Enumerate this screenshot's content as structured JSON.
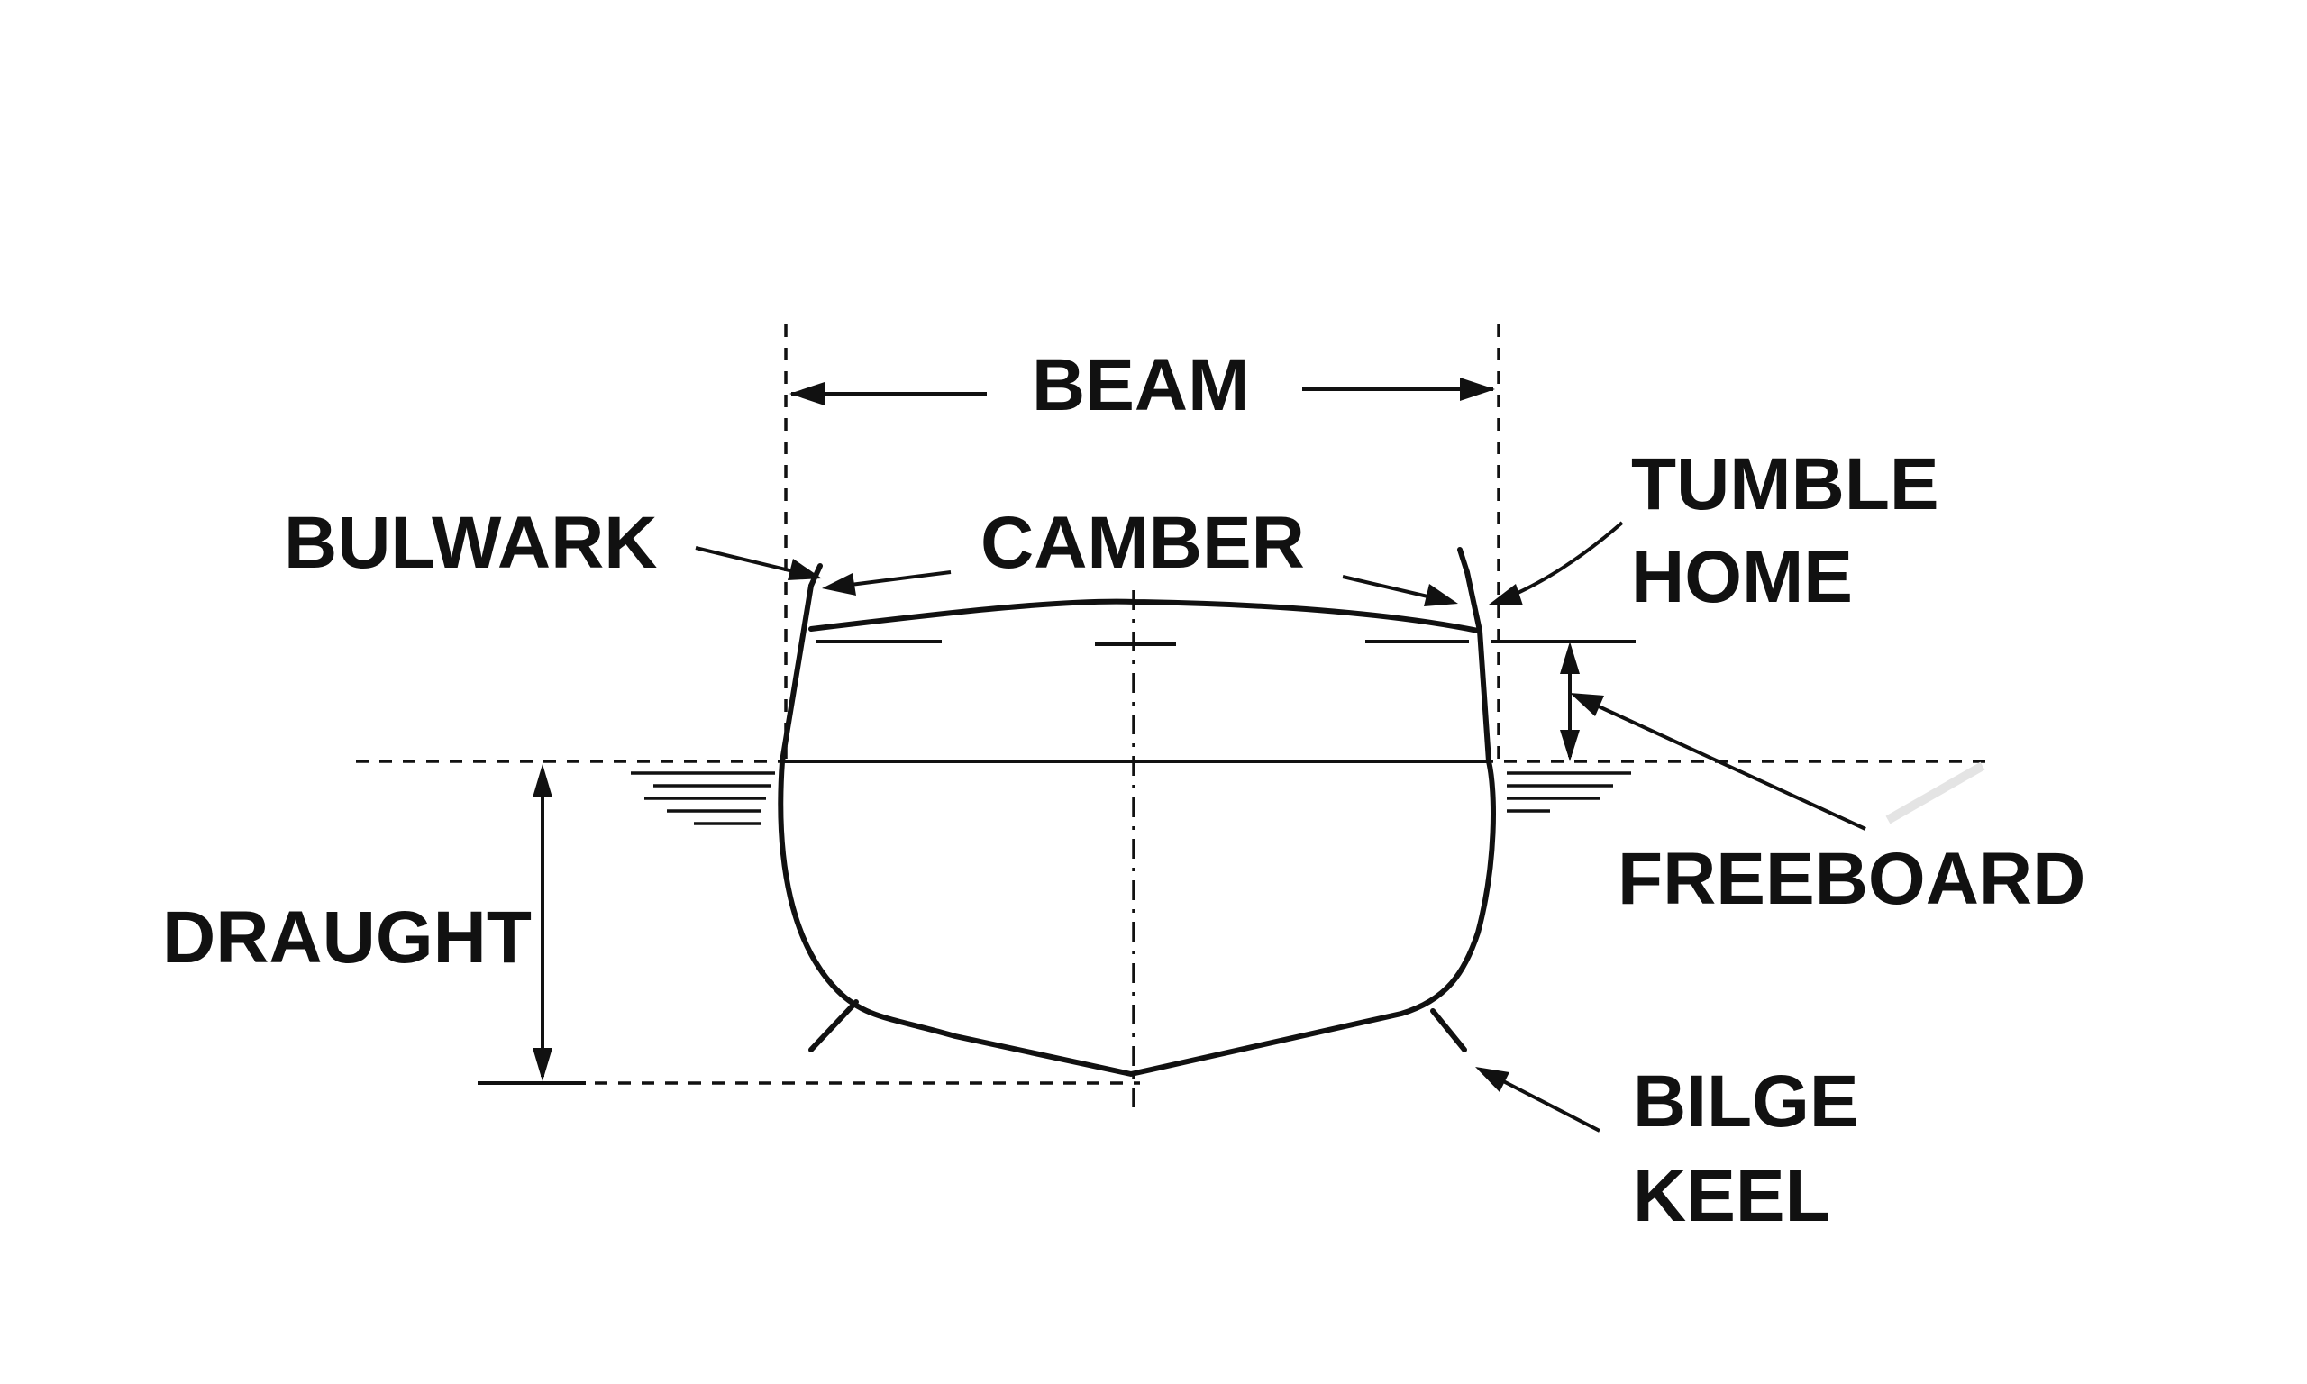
{
  "labels": {
    "beam": "BEAM",
    "bulwark": "BULWARK",
    "camber": "CAMBER",
    "tumble_home_line1": "TUMBLE",
    "tumble_home_line2": "HOME",
    "freeboard": "FREEBOARD",
    "draught": "DRAUGHT",
    "bilge_keel_line1": "BILGE",
    "bilge_keel_line2": "KEEL"
  },
  "colors": {
    "ink": "#111111",
    "background": "#ffffff"
  }
}
